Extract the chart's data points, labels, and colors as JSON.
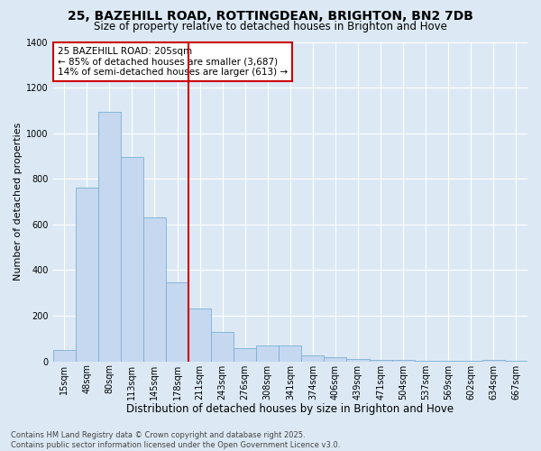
{
  "title": "25, BAZEHILL ROAD, ROTTINGDEAN, BRIGHTON, BN2 7DB",
  "subtitle": "Size of property relative to detached houses in Brighton and Hove",
  "xlabel": "Distribution of detached houses by size in Brighton and Hove",
  "ylabel": "Number of detached properties",
  "categories": [
    "15sqm",
    "48sqm",
    "80sqm",
    "113sqm",
    "145sqm",
    "178sqm",
    "211sqm",
    "243sqm",
    "276sqm",
    "308sqm",
    "341sqm",
    "374sqm",
    "406sqm",
    "439sqm",
    "471sqm",
    "504sqm",
    "537sqm",
    "569sqm",
    "602sqm",
    "634sqm",
    "667sqm"
  ],
  "values": [
    50,
    760,
    1095,
    895,
    630,
    345,
    230,
    130,
    60,
    68,
    68,
    28,
    18,
    10,
    8,
    5,
    4,
    3,
    2,
    8,
    2
  ],
  "bar_color": "#c5d8f0",
  "bar_edge_color": "#7bafd4",
  "background_color": "#dce9f5",
  "vline_color": "#cc0000",
  "annotation_text": "25 BAZEHILL ROAD: 205sqm\n← 85% of detached houses are smaller (3,687)\n14% of semi-detached houses are larger (613) →",
  "annotation_box_color": "#ffffff",
  "annotation_box_edge": "#cc0000",
  "ylim": [
    0,
    1400
  ],
  "yticks": [
    0,
    200,
    400,
    600,
    800,
    1000,
    1200,
    1400
  ],
  "footer": "Contains HM Land Registry data © Crown copyright and database right 2025.\nContains public sector information licensed under the Open Government Licence v3.0.",
  "title_fontsize": 10,
  "subtitle_fontsize": 8.5,
  "xlabel_fontsize": 8.5,
  "ylabel_fontsize": 8,
  "tick_fontsize": 7,
  "annotation_fontsize": 7.5,
  "footer_fontsize": 6
}
